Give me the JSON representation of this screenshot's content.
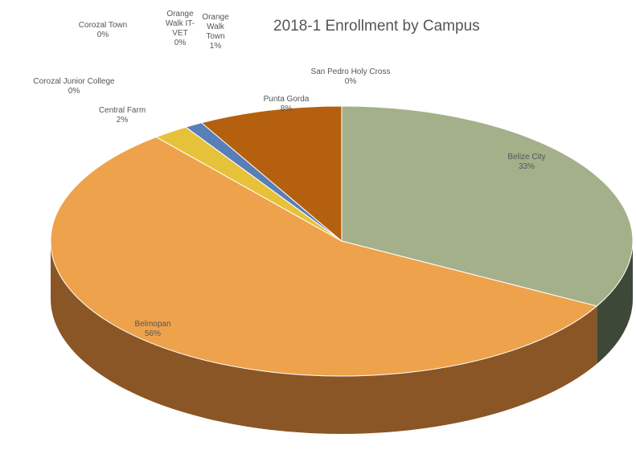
{
  "chart_data": {
    "type": "pie",
    "title": "2018-1 Enrollment by Campus",
    "categories": [
      "Belize City",
      "Belmopan",
      "Central Farm",
      "Corozal Junior College",
      "Corozal Town",
      "Orange Walk IT-VET",
      "Orange Walk Town",
      "Punta Gorda",
      "San Pedro Holy Cross"
    ],
    "values": [
      33,
      56,
      2,
      0,
      0,
      0,
      1,
      8,
      0
    ],
    "value_labels": [
      "33%",
      "56%",
      "2%",
      "0%",
      "0%",
      "0%",
      "1%",
      "8%",
      "0%"
    ],
    "colors": [
      "#a3b08a",
      "#eea24c",
      "#e6c23a",
      "#9fb6de",
      "#4f6fa6",
      "#a8a8a8",
      "#5a7eb6",
      "#b4600f",
      "#6a8f3c"
    ],
    "side_colors": [
      "#3e4838",
      "#8a5626",
      "#8e7420",
      "#5e6e88",
      "#2f4266",
      "#666666",
      "#36507a",
      "#6c3a08",
      "#40562a"
    ]
  }
}
